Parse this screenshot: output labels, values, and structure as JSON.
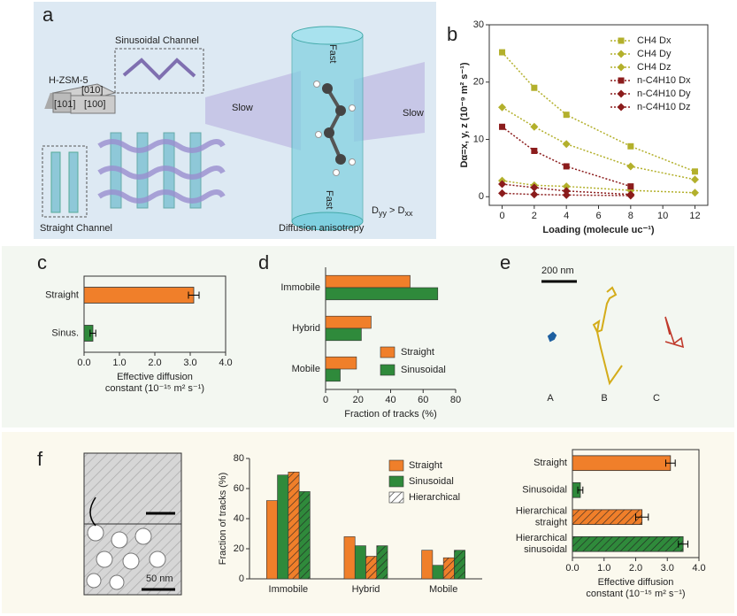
{
  "panel_labels": [
    "a",
    "b",
    "c",
    "d",
    "e",
    "f"
  ],
  "panel_a": {
    "sinusoidal": "Sinusoidal Channel",
    "crystal": "H-ZSM-5",
    "faces": [
      "[010]",
      "[101]",
      "[100]"
    ],
    "straight": "Straight Channel",
    "anisotropy": "Diffusion anisotropy",
    "slow": [
      "Slow",
      "Slow"
    ],
    "fast": [
      "Fast",
      "Fast"
    ],
    "relation": [
      "D",
      "yy",
      " > D",
      "xx"
    ]
  },
  "panel_e": {
    "scale": "200 nm",
    "labels": [
      "A",
      "B",
      "C"
    ]
  },
  "panel_f": {
    "scale": "50 nm"
  },
  "chart_data": [
    {
      "type": "line",
      "ylabel": "Dα=x, y, z (10⁻⁹ m² s⁻¹)",
      "xlabel": "Loading (molecule uc⁻¹)",
      "x": [
        0,
        2,
        4,
        8,
        12
      ],
      "xlim": [
        -0.8,
        12.8
      ],
      "xticks": [
        0,
        2,
        4,
        6,
        8,
        10,
        12
      ],
      "ylim": [
        -1.5,
        30
      ],
      "yticks": [
        0,
        10,
        20,
        30
      ],
      "series": [
        {
          "name": "CH4  Dx",
          "color": "#b3b02c",
          "marker": "square",
          "values": [
            25.2,
            19.0,
            14.3,
            8.8,
            4.4
          ]
        },
        {
          "name": "CH4  Dy",
          "color": "#b3b02c",
          "marker": "diamond",
          "values": [
            15.6,
            12.2,
            9.2,
            5.3,
            3.0
          ]
        },
        {
          "name": "CH4  Dz",
          "color": "#b3b02c",
          "marker": "diamond",
          "values": [
            2.8,
            2.0,
            1.8,
            1.1,
            0.7
          ]
        },
        {
          "name": "n-C4H10  Dx",
          "color": "#8b1c1c",
          "marker": "square",
          "values": [
            12.2,
            8.0,
            5.3,
            1.8,
            null
          ]
        },
        {
          "name": "n-C4H10  Dy",
          "color": "#8b1c1c",
          "marker": "diamond",
          "values": [
            2.2,
            1.6,
            1.0,
            0.4,
            null
          ]
        },
        {
          "name": "n-C4H10  Dz",
          "color": "#8b1c1c",
          "marker": "diamond",
          "values": [
            0.6,
            0.4,
            0.3,
            0.2,
            null
          ]
        }
      ]
    },
    {
      "type": "hbar",
      "categories": [
        "Straight",
        "Sinus."
      ],
      "values": [
        3.1,
        0.25
      ],
      "errors": [
        0.15,
        0.08
      ],
      "colors": [
        "#f07f2a",
        "#2f8a3b"
      ],
      "xlim": [
        0,
        4
      ],
      "xticks": [
        {
          "value": 0,
          "label": "0.0"
        },
        {
          "value": 1,
          "label": "1.0"
        },
        {
          "value": 2,
          "label": "2.0"
        },
        {
          "value": 3,
          "label": "3.0"
        },
        {
          "value": 4,
          "label": "4.0"
        }
      ],
      "xlabel": [
        "Effective diffusion",
        "constant (10⁻¹⁵ m² s⁻¹)"
      ]
    },
    {
      "type": "grouped_hbar",
      "categories": [
        "Immobile",
        "Hybrid",
        "Mobile"
      ],
      "category_colors": [
        "#2c5aa0",
        "#d4a81c",
        "#c0392b"
      ],
      "series": [
        {
          "name": "Straight",
          "color": "#f07f2a",
          "values": [
            52,
            28,
            19
          ]
        },
        {
          "name": "Sinusoidal",
          "color": "#2f8a3b",
          "values": [
            69,
            22,
            9
          ]
        }
      ],
      "xlim": [
        0,
        80
      ],
      "xticks": [
        0,
        20,
        40,
        60,
        80
      ],
      "xlabel": "Fraction of tracks (%)"
    },
    {
      "type": "grouped_bar",
      "categories": [
        "Immobile",
        "Hybrid",
        "Mobile"
      ],
      "category_colors": [
        "#2c5aa0",
        "#d4a81c",
        "#c0392b"
      ],
      "series": [
        {
          "color": "#f07f2a",
          "hatch": false,
          "values": [
            52,
            28,
            19
          ]
        },
        {
          "color": "#2f8a3b",
          "hatch": false,
          "values": [
            69,
            22,
            9
          ]
        },
        {
          "color": "#f07f2a",
          "hatch": true,
          "values": [
            71,
            15,
            14
          ]
        },
        {
          "color": "#2f8a3b",
          "hatch": true,
          "values": [
            58,
            22,
            19
          ]
        }
      ],
      "legend": [
        {
          "name": "Straight",
          "color": "#f07f2a",
          "hatch": false
        },
        {
          "name": "Sinusoidal",
          "color": "#2f8a3b",
          "hatch": false
        },
        {
          "name": "Hierarchical",
          "color": "#ffffff",
          "hatch": true
        }
      ],
      "ylim": [
        0,
        80
      ],
      "yticks": [
        0,
        20,
        40,
        60,
        80
      ],
      "ylabel": "Fraction of tracks (%)"
    },
    {
      "type": "hbar",
      "categories": [
        [
          "Straight"
        ],
        [
          "Sinusoidal"
        ],
        [
          "Hierarchical",
          "straight"
        ],
        [
          "Hierarchical",
          "sinusoidal"
        ]
      ],
      "values": [
        3.1,
        0.25,
        2.2,
        3.5
      ],
      "errors": [
        0.15,
        0.08,
        0.2,
        0.15
      ],
      "colors": [
        "#f07f2a",
        "#2f8a3b",
        "#f07f2a",
        "#2f8a3b"
      ],
      "hatch": [
        false,
        false,
        true,
        true
      ],
      "xlim": [
        0,
        4
      ],
      "xticks": [
        {
          "value": 0,
          "label": "0.0"
        },
        {
          "value": 1,
          "label": "1.0"
        },
        {
          "value": 2,
          "label": "2.0"
        },
        {
          "value": 3,
          "label": "3.0"
        },
        {
          "value": 4,
          "label": "4.0"
        }
      ],
      "xlabel": [
        "Effective diffusion",
        "constant (10⁻¹⁵ m² s⁻¹)"
      ]
    }
  ]
}
